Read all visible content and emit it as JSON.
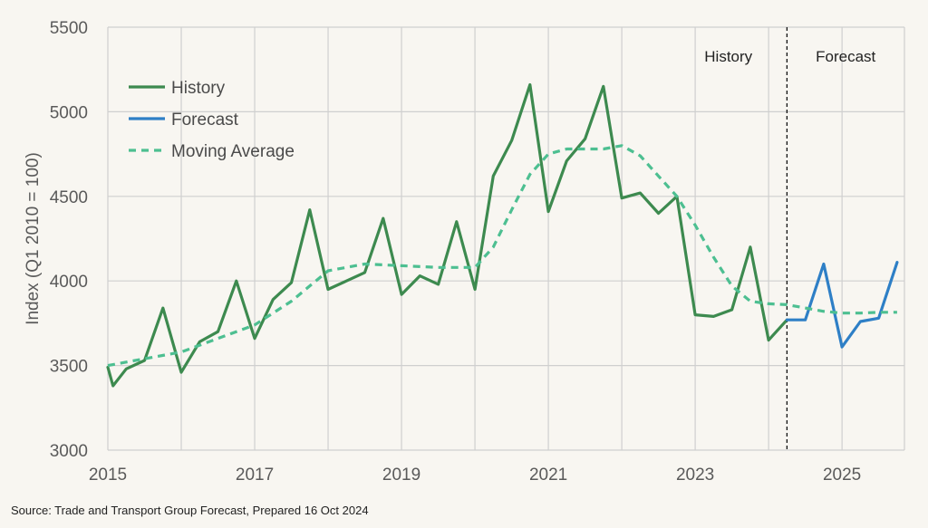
{
  "chart_data": {
    "type": "line",
    "title": "",
    "xlabel": "",
    "ylabel": "Index (Q1 2010 = 100)",
    "xlim": [
      2015,
      2025.85
    ],
    "ylim": [
      3000,
      5500
    ],
    "x_ticks": [
      "2015",
      "2017",
      "2019",
      "2021",
      "2023",
      "2025"
    ],
    "y_ticks": [
      "3000",
      "3500",
      "4000",
      "4500",
      "5000",
      "5500"
    ],
    "grid": true,
    "legend_position": "top-left",
    "divider_x": 2024.25,
    "regions": {
      "left": "History",
      "right": "Forecast"
    },
    "series": [
      {
        "name": "History",
        "color": "#3d8a4f",
        "style": "solid",
        "x": [
          2015.0,
          2015.07,
          2015.25,
          2015.5,
          2015.75,
          2016.0,
          2016.25,
          2016.5,
          2016.75,
          2017.0,
          2017.25,
          2017.5,
          2017.75,
          2018.0,
          2018.25,
          2018.5,
          2018.75,
          2019.0,
          2019.25,
          2019.5,
          2019.75,
          2020.0,
          2020.25,
          2020.5,
          2020.75,
          2021.0,
          2021.25,
          2021.5,
          2021.75,
          2022.0,
          2022.25,
          2022.5,
          2022.75,
          2023.0,
          2023.25,
          2023.5,
          2023.75,
          2024.0,
          2024.25
        ],
        "y": [
          3490,
          3380,
          3480,
          3530,
          3840,
          3460,
          3640,
          3700,
          4000,
          3660,
          3890,
          3990,
          4420,
          3950,
          4000,
          4050,
          4370,
          3920,
          4030,
          3980,
          4350,
          3950,
          4620,
          4830,
          5160,
          4410,
          4710,
          4840,
          5150,
          4490,
          4520,
          4400,
          4500,
          3800,
          3790,
          3830,
          4200,
          3650,
          3770
        ]
      },
      {
        "name": "Forecast",
        "color": "#2e7fc6",
        "style": "solid",
        "x": [
          2024.25,
          2024.5,
          2024.75,
          2025.0,
          2025.25,
          2025.5,
          2025.75
        ],
        "y": [
          3770,
          3770,
          4100,
          3610,
          3760,
          3780,
          4110
        ]
      },
      {
        "name": "Moving Average",
        "color": "#4dbf91",
        "style": "dashed",
        "x": [
          2015.0,
          2015.5,
          2016.0,
          2016.5,
          2017.0,
          2017.5,
          2018.0,
          2018.5,
          2019.0,
          2019.5,
          2020.0,
          2020.25,
          2020.5,
          2020.75,
          2021.0,
          2021.25,
          2021.5,
          2021.75,
          2022.0,
          2022.25,
          2022.5,
          2022.75,
          2023.0,
          2023.25,
          2023.5,
          2023.75,
          2024.0,
          2024.25,
          2024.5,
          2024.75,
          2025.0,
          2025.25,
          2025.5,
          2025.75
        ],
        "y": [
          3500,
          3540,
          3580,
          3660,
          3740,
          3880,
          4060,
          4100,
          4090,
          4080,
          4080,
          4200,
          4420,
          4630,
          4750,
          4780,
          4780,
          4780,
          4800,
          4740,
          4620,
          4500,
          4330,
          4140,
          3970,
          3880,
          3865,
          3860,
          3840,
          3820,
          3810,
          3810,
          3815,
          3815
        ]
      }
    ]
  },
  "source": "Source: Trade and Transport Group Forecast, Prepared 16 Oct 2024"
}
